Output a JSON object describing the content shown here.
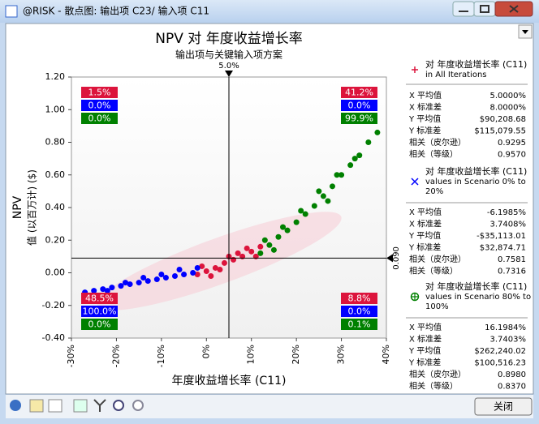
{
  "window": {
    "title": "@RISK - 散点图: 输出项 C23/ 输入项 C11",
    "close_button": "关闭"
  },
  "chart_data": {
    "type": "scatter",
    "title": "NPV 对 年度收益增长率",
    "subtitle": "输出项与关键输入项方案",
    "x_label": "年度收益增长率 (C11)",
    "y_label": "NPV",
    "y_sublabel": "值 (以百万计) ($)",
    "xlim": [
      -30,
      40
    ],
    "ylim": [
      -0.4,
      1.2
    ],
    "xticks": [
      {
        "value": -30,
        "label": "-30%"
      },
      {
        "value": -20,
        "label": "-20%"
      },
      {
        "value": -10,
        "label": "-10%"
      },
      {
        "value": 0,
        "label": "0%"
      },
      {
        "value": 10,
        "label": "10%"
      },
      {
        "value": 20,
        "label": "20%"
      },
      {
        "value": 30,
        "label": "30%"
      },
      {
        "value": 40,
        "label": "40%"
      }
    ],
    "yticks": [
      {
        "value": -0.4,
        "label": "-0.40"
      },
      {
        "value": -0.2,
        "label": "-0.20"
      },
      {
        "value": 0,
        "label": "0.00"
      },
      {
        "value": 0.2,
        "label": "0.20"
      },
      {
        "value": 0.4,
        "label": "0.40"
      },
      {
        "value": 0.6,
        "label": "0.60"
      },
      {
        "value": 0.8,
        "label": "0.80"
      },
      {
        "value": 1.0,
        "label": "1.00"
      },
      {
        "value": 1.2,
        "label": "1.20"
      }
    ],
    "crosshair": {
      "x": 5.0,
      "x_label": "5.0%",
      "y": 0.09,
      "y_label": "0.090"
    },
    "quadrant_order": [
      "top-left",
      "top-right",
      "bottom-left",
      "bottom-right"
    ],
    "series": [
      {
        "color": "#dc143c",
        "x": [
          -2,
          0,
          2,
          4,
          6,
          8,
          10,
          12,
          -1,
          3,
          7,
          11,
          1,
          5,
          9
        ],
        "values": [
          -0.01,
          0.01,
          0.03,
          0.06,
          0.08,
          0.1,
          0.13,
          0.16,
          0.04,
          0.02,
          0.12,
          0.1,
          -0.02,
          0.1,
          0.15
        ],
        "quadrants": [
          1.5,
          41.2,
          48.5,
          8.8
        ],
        "quadrant_labels": [
          "1.5%",
          "41.2%",
          "48.5%",
          "8.8%"
        ]
      },
      {
        "color": "#0000ff",
        "x": [
          -27,
          -25,
          -23,
          -21,
          -19,
          -17,
          -15,
          -13,
          -11,
          -9,
          -7,
          -5,
          -3,
          -26,
          -22,
          -18,
          -14,
          -10,
          -6,
          -2
        ],
        "values": [
          -0.12,
          -0.11,
          -0.1,
          -0.09,
          -0.08,
          -0.07,
          -0.06,
          -0.05,
          -0.04,
          -0.03,
          -0.02,
          -0.01,
          0.0,
          -0.14,
          -0.11,
          -0.06,
          -0.03,
          -0.01,
          0.02,
          0.03
        ],
        "quadrants": [
          0.0,
          0.0,
          100.0,
          0.0
        ],
        "quadrant_labels": [
          "0.0%",
          "0.0%",
          "100.0%",
          "0.0%"
        ]
      },
      {
        "color": "#008000",
        "x": [
          12,
          14,
          16,
          18,
          20,
          22,
          24,
          26,
          28,
          30,
          32,
          34,
          36,
          38,
          13,
          17,
          21,
          25,
          29,
          33,
          15,
          27
        ],
        "values": [
          0.12,
          0.17,
          0.22,
          0.26,
          0.31,
          0.36,
          0.41,
          0.47,
          0.53,
          0.6,
          0.66,
          0.72,
          0.8,
          0.86,
          0.2,
          0.28,
          0.38,
          0.5,
          0.6,
          0.7,
          0.14,
          0.44
        ],
        "quadrants": [
          0.0,
          99.9,
          0.0,
          0.1
        ],
        "quadrant_labels": [
          "0.0%",
          "99.9%",
          "0.0%",
          "0.1%"
        ]
      }
    ]
  },
  "stats": [
    {
      "lines": [
        "对 年度收益增长率 (C11)",
        "in All Iterations"
      ],
      "rows": [
        [
          "X 平均值",
          "5.0000%"
        ],
        [
          "X 标准差",
          "8.0000%"
        ],
        [
          "Y 平均值",
          "$90,208.68"
        ],
        [
          "Y 标准差",
          "$115,079.55"
        ],
        [
          "相关（皮尔逊）",
          "0.9295"
        ],
        [
          "相关（等级）",
          "0.9570"
        ]
      ]
    },
    {
      "lines": [
        "对 年度收益增长率 (C11)",
        "values in Scenario 0% to",
        "20%"
      ],
      "rows": [
        [
          "X 平均值",
          "-6.1985%"
        ],
        [
          "X 标准差",
          "3.7408%"
        ],
        [
          "Y 平均值",
          "-$35,113.01"
        ],
        [
          "Y 标准差",
          "$32,874.71"
        ],
        [
          "相关（皮尔逊）",
          "0.7581"
        ],
        [
          "相关（等级）",
          "0.7316"
        ]
      ]
    },
    {
      "lines": [
        "对 年度收益增长率 (C11)",
        "values in Scenario 80% to",
        "100%"
      ],
      "rows": [
        [
          "X 平均值",
          "16.1984%"
        ],
        [
          "X 标准差",
          "3.7403%"
        ],
        [
          "Y 平均值",
          "$262,240.02"
        ],
        [
          "Y 标准差",
          "$100,516.23"
        ],
        [
          "相关（皮尔逊）",
          "0.8980"
        ],
        [
          "相关（等级）",
          "0.8370"
        ]
      ]
    }
  ]
}
